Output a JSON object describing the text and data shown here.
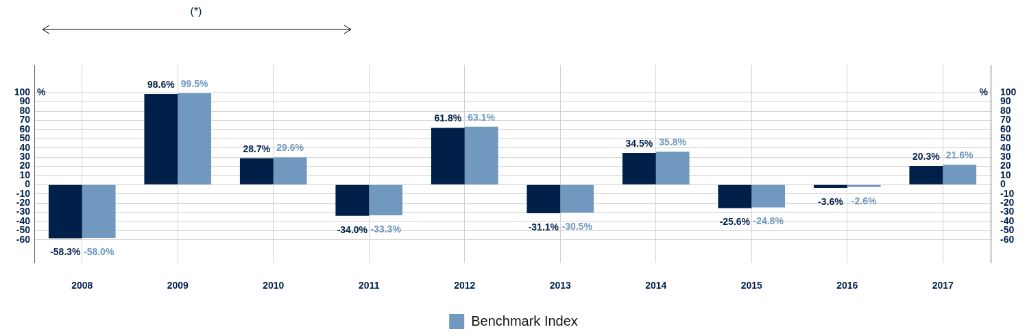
{
  "chart_data": {
    "type": "bar",
    "categories": [
      "2008",
      "2009",
      "2010",
      "2011",
      "2012",
      "2013",
      "2014",
      "2015",
      "2016",
      "2017"
    ],
    "series": [
      {
        "color": "#00204a",
        "values": [
          -58.3,
          98.6,
          28.7,
          -34.0,
          61.8,
          -31.1,
          34.5,
          -25.6,
          -3.6,
          20.3
        ],
        "value_labels": [
          "-58.3%",
          "98.6%",
          "28.7%",
          "-34.0%",
          "61.8%",
          "-31.1%",
          "34.5%",
          "-25.6%",
          "-3.6%",
          "20.3%"
        ]
      },
      {
        "name": "Benchmark Index",
        "color": "#7198be",
        "values": [
          -58.0,
          99.5,
          29.6,
          -33.3,
          63.1,
          -30.5,
          35.8,
          -24.8,
          -2.6,
          21.6
        ],
        "value_labels": [
          "-58.0%",
          "99.5%",
          "29.6%",
          "-33.3%",
          "63.1%",
          "-30.5%",
          "35.8%",
          "-24.8%",
          "-2.6%",
          "21.6%"
        ]
      }
    ],
    "ylim": [
      -85,
      130
    ],
    "yticks": [
      -60,
      -50,
      -40,
      -30,
      -20,
      -10,
      0,
      10,
      20,
      30,
      40,
      50,
      60,
      70,
      80,
      90,
      100
    ],
    "y2lim": [
      -85,
      130
    ],
    "y2ticks": [
      -60,
      -50,
      -40,
      -30,
      -20,
      -10,
      0,
      10,
      20,
      30,
      40,
      50,
      60,
      70,
      80,
      90,
      100
    ],
    "ylabel": "%",
    "y2label": "%",
    "annotations": [
      "(*)"
    ],
    "grid": true,
    "legend": "bottom"
  }
}
